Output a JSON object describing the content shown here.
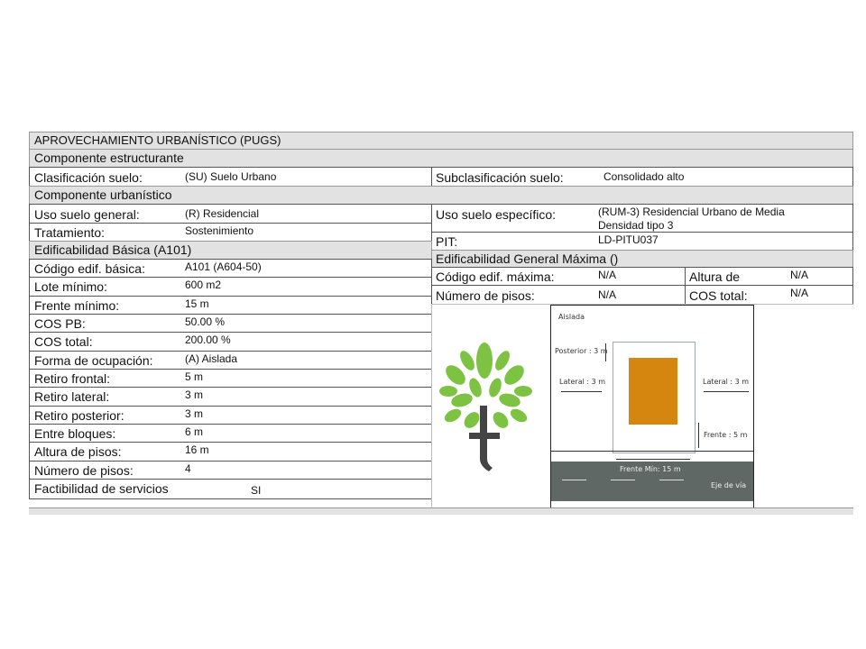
{
  "title": "APROVECHAMIENTO URBANÍSTICO (PUGS)",
  "estructurante": {
    "header": "Componente  estructurante",
    "clasificacion_label": "Clasificación suelo:",
    "clasificacion_value": "(SU) Suelo Urbano",
    "subclasificacion_label": "Subclasificación suelo:",
    "subclasificacion_value": "Consolidado alto"
  },
  "urbanistico": {
    "header": "Componente  urbanístico",
    "uso_general_label": "Uso suelo general:",
    "uso_general_value": "(R) Residencial",
    "tratamiento_label": "Tratamiento:",
    "tratamiento_value": "Sostenimiento",
    "uso_especifico_label": "Uso suelo específico:",
    "uso_especifico_value_1": "(RUM-3) Residencial Urbano de Media",
    "uso_especifico_value_2": "Densidad tipo 3",
    "pit_label": "PIT:",
    "pit_value": "LD-PITU037"
  },
  "basica": {
    "header": "Edificabilidad Básica (A101)",
    "rows": [
      {
        "label": "Código edif. básica:",
        "value": "A101 (A604-50)"
      },
      {
        "label": "Lote mínimo:",
        "value": "600 m2"
      },
      {
        "label": "Frente mínimo:",
        "value": "15 m"
      },
      {
        "label": "COS PB:",
        "value": "50.00 %"
      },
      {
        "label": "COS total:",
        "value": "200.00 %"
      },
      {
        "label": "Forma de ocupación:",
        "value": "(A) Aislada"
      },
      {
        "label": "Retiro frontal:",
        "value": "5 m"
      },
      {
        "label": "Retiro lateral:",
        "value": "3 m"
      },
      {
        "label": "Retiro posterior:",
        "value": "3 m"
      },
      {
        "label": "Entre bloques:",
        "value": "6 m"
      },
      {
        "label": "Altura de pisos:",
        "value": "16 m"
      },
      {
        "label": "Número de pisos:",
        "value": "4"
      },
      {
        "label": "Factibilidad de servicios",
        "value": "SI"
      }
    ]
  },
  "maxima": {
    "header": "Edificabilidad General Máxima ()",
    "codigo_label": "Código edif. máxima:",
    "codigo_value": "N/A",
    "altura_label": "Altura de",
    "altura_value": "N/A",
    "pisos_label": "Número de pisos:",
    "pisos_value": "N/A",
    "cos_label": "COS total:",
    "cos_value": "N/A"
  },
  "diagram": {
    "tipo": "Aislada",
    "posterior": "Posterior : 3 m",
    "lateral_left": "Lateral : 3 m",
    "lateral_right": "Lateral : 3 m",
    "frente": "Frente : 5 m",
    "frente_min": "Frente Mín: 15 m",
    "eje": "Eje de vía",
    "building_color": "#d4860f",
    "road_color": "#5f6864"
  },
  "logo": {
    "letter": "t",
    "leaf_color": "#7dc242",
    "stem_color": "#444"
  }
}
